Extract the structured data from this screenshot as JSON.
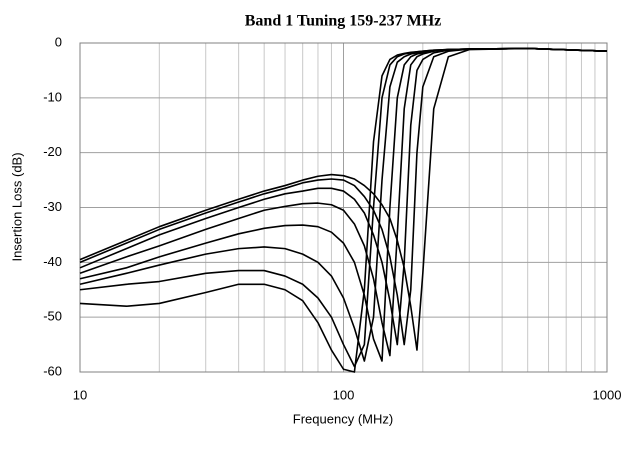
{
  "chart_data": {
    "type": "line",
    "title": "Band 1 Tuning 159-237 MHz",
    "x_label": "Frequency (MHz)",
    "y_label": "Insertion Loss (dB)",
    "log_x": true,
    "grid": true,
    "xlim": [
      10,
      1000
    ],
    "xticks": [
      10,
      100,
      1000
    ],
    "x_minor_ticks": [
      20,
      30,
      40,
      50,
      60,
      70,
      80,
      90,
      200,
      300,
      400,
      500,
      600,
      700,
      800,
      900
    ],
    "ylim": [
      -60,
      0
    ],
    "yticks": [
      0,
      -10,
      -20,
      -30,
      -40,
      -50,
      -60
    ],
    "x": [
      10,
      15,
      20,
      30,
      40,
      50,
      60,
      70,
      80,
      90,
      100,
      110,
      120,
      130,
      140,
      150,
      160,
      170,
      180,
      190,
      200,
      220,
      250,
      300,
      500,
      1000
    ],
    "series": [
      {
        "color": "#000000",
        "values": [
          -39.5,
          -36,
          -33.5,
          -30.5,
          -28.5,
          -27,
          -26,
          -25,
          -24.3,
          -24,
          -24.2,
          -24.8,
          -26,
          -27.5,
          -29.5,
          -32,
          -36,
          -41,
          -48,
          -56,
          -42,
          -12,
          -2.5,
          -1.2,
          -1,
          -1.5
        ]
      },
      {
        "color": "#000000",
        "values": [
          -40,
          -36.5,
          -34,
          -31,
          -29,
          -27.5,
          -26.5,
          -25.5,
          -25,
          -24.8,
          -25,
          -26,
          -28,
          -30.5,
          -34,
          -39,
          -46,
          -55,
          -45,
          -20,
          -8,
          -2.5,
          -1.5,
          -1.1,
          -1,
          -1.5
        ]
      },
      {
        "color": "#000000",
        "values": [
          -41,
          -37.5,
          -35,
          -32,
          -30,
          -28.5,
          -27.5,
          -27,
          -26.5,
          -26.5,
          -27,
          -28.5,
          -31,
          -35,
          -40,
          -47,
          -55,
          -40,
          -15,
          -5,
          -3,
          -1.8,
          -1.3,
          -1.1,
          -1,
          -1.5
        ]
      },
      {
        "color": "#000000",
        "values": [
          -42,
          -39,
          -37,
          -34,
          -32,
          -30.5,
          -29.8,
          -29.3,
          -29.2,
          -29.5,
          -30.5,
          -33,
          -37,
          -43,
          -51,
          -57,
          -35,
          -12,
          -4,
          -2.5,
          -2,
          -1.5,
          -1.2,
          -1.1,
          -1,
          -1.5
        ]
      },
      {
        "color": "#000000",
        "values": [
          -43,
          -41,
          -39,
          -36.5,
          -34.8,
          -33.8,
          -33.3,
          -33.2,
          -33.5,
          -34.5,
          -36.5,
          -40,
          -46,
          -54,
          -58,
          -30,
          -10,
          -4,
          -2.5,
          -2,
          -1.8,
          -1.4,
          -1.2,
          -1.1,
          -1,
          -1.5
        ]
      },
      {
        "color": "#000000",
        "values": [
          -44,
          -42,
          -40.5,
          -38.5,
          -37.5,
          -37.2,
          -37.5,
          -38.5,
          -40,
          -42.5,
          -46.5,
          -52,
          -58,
          -50,
          -25,
          -8,
          -3.5,
          -2.5,
          -2,
          -1.8,
          -1.6,
          -1.4,
          -1.2,
          -1.1,
          -1,
          -1.5
        ]
      },
      {
        "color": "#000000",
        "values": [
          -45,
          -44,
          -43.5,
          -42,
          -41.5,
          -41.5,
          -42.5,
          -44,
          -46.5,
          -50,
          -55,
          -59,
          -55,
          -30,
          -10,
          -4,
          -2.5,
          -2,
          -1.8,
          -1.6,
          -1.5,
          -1.3,
          -1.2,
          -1.1,
          -1,
          -1.5
        ]
      },
      {
        "color": "#000000",
        "values": [
          -47.5,
          -48,
          -47.5,
          -45.5,
          -44,
          -44,
          -45,
          -47,
          -51,
          -56,
          -59.5,
          -60,
          -45,
          -18,
          -6,
          -3,
          -2.2,
          -1.9,
          -1.7,
          -1.6,
          -1.5,
          -1.3,
          -1.2,
          -1.1,
          -1,
          -1.5
        ]
      }
    ]
  }
}
